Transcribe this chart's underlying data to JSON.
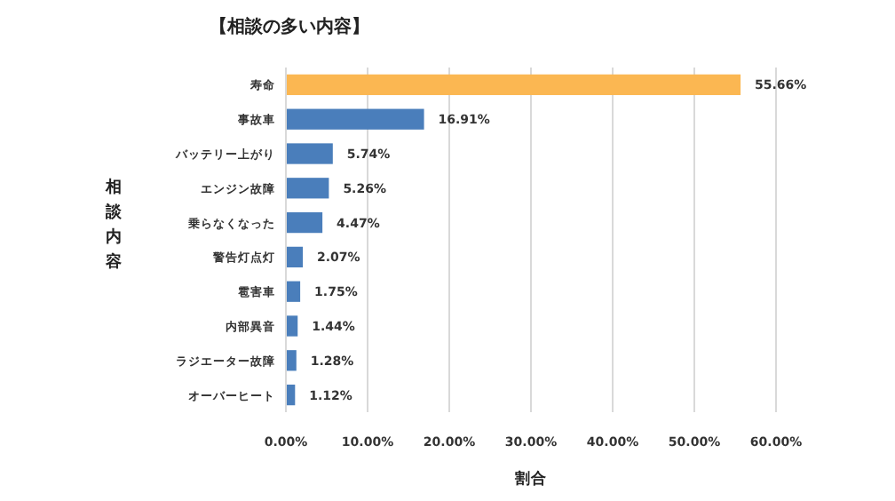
{
  "chart_data": {
    "type": "bar",
    "orientation": "horizontal",
    "title": "【相談の多い内容】",
    "xlabel": "割合",
    "ylabel": "相談内容",
    "categories": [
      "寿命",
      "事故車",
      "バッテリー上がり",
      "エンジン故障",
      "乗らなくなった",
      "警告灯点灯",
      "雹害車",
      "内部異音",
      "ラジエーター故障",
      "オーバーヒート"
    ],
    "values": [
      55.66,
      16.91,
      5.74,
      5.26,
      4.47,
      2.07,
      1.75,
      1.44,
      1.28,
      1.12
    ],
    "colors": [
      "#fbb752",
      "#4a7ebb",
      "#4a7ebb",
      "#4a7ebb",
      "#4a7ebb",
      "#4a7ebb",
      "#4a7ebb",
      "#4a7ebb",
      "#4a7ebb",
      "#4a7ebb"
    ],
    "value_labels": [
      "55.66%",
      "16.91%",
      "5.74%",
      "5.26%",
      "4.47%",
      "2.07%",
      "1.75%",
      "1.44%",
      "1.28%",
      "1.12%"
    ],
    "xlim": [
      0,
      60
    ],
    "xticks": [
      {
        "value": 0,
        "label": "0.00%"
      },
      {
        "value": 10,
        "label": "10.00%"
      },
      {
        "value": 20,
        "label": "20.00%"
      },
      {
        "value": 30,
        "label": "30.00%"
      },
      {
        "value": 40,
        "label": "40.00%"
      },
      {
        "value": 50,
        "label": "50.00%"
      },
      {
        "value": 60,
        "label": "60.00%"
      }
    ],
    "grid": "x"
  }
}
